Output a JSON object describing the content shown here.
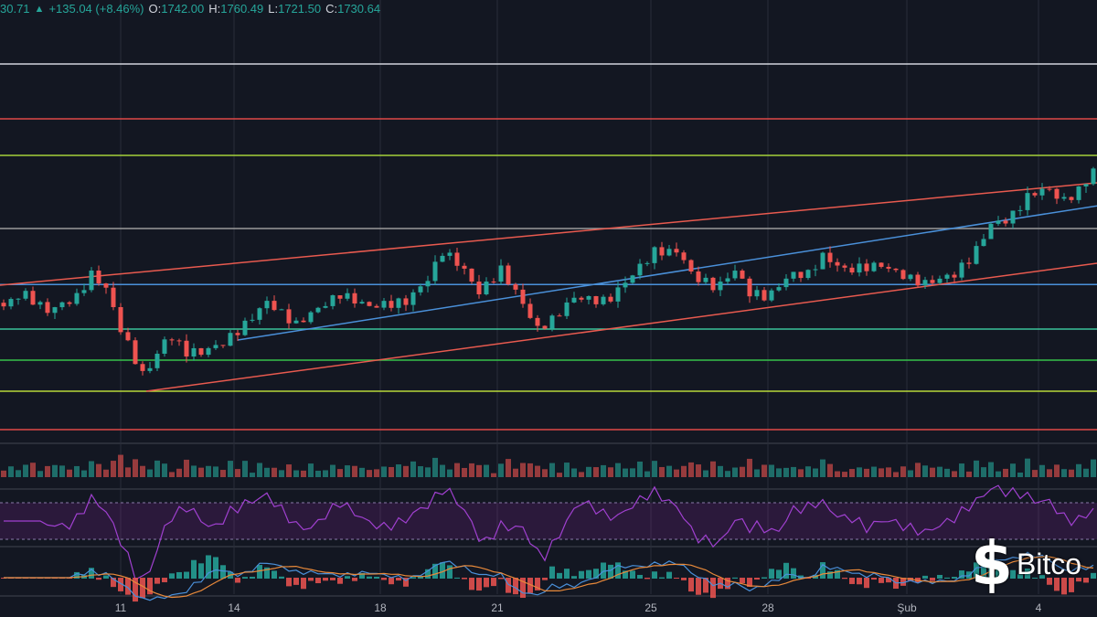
{
  "header": {
    "last": "30.71",
    "change_icon": "triangle-up-icon",
    "change": "+135.04 (+8.46%)",
    "o_label": "O:",
    "o": "1742.00",
    "h_label": "H:",
    "h": "1760.49",
    "l_label": "L:",
    "l": "1721.50",
    "c_label": "C:",
    "c": "1730.64"
  },
  "watermark": {
    "logo_glyph": "$",
    "text": "Bitco"
  },
  "colors": {
    "bg": "#131722",
    "up": "#26a69a",
    "down": "#ef5350",
    "rsi": "#9c27b0",
    "grid": "#2a2e39"
  },
  "chart_data": {
    "type": "candlestick",
    "title": "",
    "ylim": [
      1000,
      2200
    ],
    "candle_count": 150,
    "x_ticks": [
      {
        "label": "11",
        "index": 16.5
      },
      {
        "label": "14",
        "index": 32
      },
      {
        "label": "18",
        "index": 52
      },
      {
        "label": "21",
        "index": 68
      },
      {
        "label": "25",
        "index": 89
      },
      {
        "label": "28",
        "index": 105
      },
      {
        "label": "Şub",
        "index": 124
      },
      {
        "label": "4",
        "index": 142
      }
    ],
    "close_anchors": [
      [
        0,
        1362
      ],
      [
        2.5,
        1400
      ],
      [
        6,
        1350
      ],
      [
        10,
        1387
      ],
      [
        12,
        1450
      ],
      [
        14,
        1412
      ],
      [
        16,
        1300
      ],
      [
        17.5,
        1237
      ],
      [
        19,
        1175
      ],
      [
        20.5,
        1212
      ],
      [
        22.5,
        1287
      ],
      [
        25,
        1237
      ],
      [
        27,
        1237
      ],
      [
        30,
        1262
      ],
      [
        33,
        1312
      ],
      [
        36,
        1375
      ],
      [
        40,
        1312
      ],
      [
        42.5,
        1350
      ],
      [
        46,
        1395
      ],
      [
        50,
        1362
      ],
      [
        55,
        1375
      ],
      [
        58,
        1437
      ],
      [
        60,
        1512
      ],
      [
        62.5,
        1475
      ],
      [
        65,
        1400
      ],
      [
        68,
        1462
      ],
      [
        70.5,
        1387
      ],
      [
        73,
        1300
      ],
      [
        75,
        1325
      ],
      [
        78,
        1387
      ],
      [
        82.5,
        1375
      ],
      [
        86,
        1450
      ],
      [
        89,
        1512
      ],
      [
        92.5,
        1512
      ],
      [
        94,
        1450
      ],
      [
        97.5,
        1412
      ],
      [
        100,
        1462
      ],
      [
        102,
        1400
      ],
      [
        104.5,
        1387
      ],
      [
        107.5,
        1450
      ],
      [
        110,
        1450
      ],
      [
        112,
        1500
      ],
      [
        115,
        1462
      ],
      [
        120,
        1475
      ],
      [
        124,
        1437
      ],
      [
        126,
        1425
      ],
      [
        130,
        1450
      ],
      [
        132.5,
        1500
      ],
      [
        135,
        1587
      ],
      [
        137.5,
        1600
      ],
      [
        140,
        1662
      ],
      [
        142.5,
        1687
      ],
      [
        145,
        1650
      ],
      [
        147.5,
        1687
      ],
      [
        149,
        1737
      ]
    ],
    "levels": [
      {
        "price": 2025,
        "color": "#d1d4dc"
      },
      {
        "price": 1875,
        "color": "#e04848"
      },
      {
        "price": 1775,
        "color": "#a4d13a"
      },
      {
        "price": 1575,
        "color": "#9a9a9a"
      },
      {
        "price": 1422,
        "color": "#4a90d9"
      },
      {
        "price": 1300,
        "color": "#3bc49a"
      },
      {
        "price": 1215,
        "color": "#36c24a"
      },
      {
        "price": 1130,
        "color": "#b8d93a"
      },
      {
        "price": 1025,
        "color": "#e04848"
      }
    ],
    "trendlines": [
      {
        "name": "channel-upper",
        "from": [
          0,
          1420
        ],
        "to": [
          150,
          1700
        ],
        "color": "#e85a4f"
      },
      {
        "name": "channel-lower",
        "from": [
          20,
          1130
        ],
        "to": [
          150,
          1480
        ],
        "color": "#e85a4f"
      },
      {
        "name": "support-line",
        "from": [
          32.5,
          1270
        ],
        "to": [
          150,
          1637
        ],
        "color": "#4a90d9"
      }
    ]
  }
}
